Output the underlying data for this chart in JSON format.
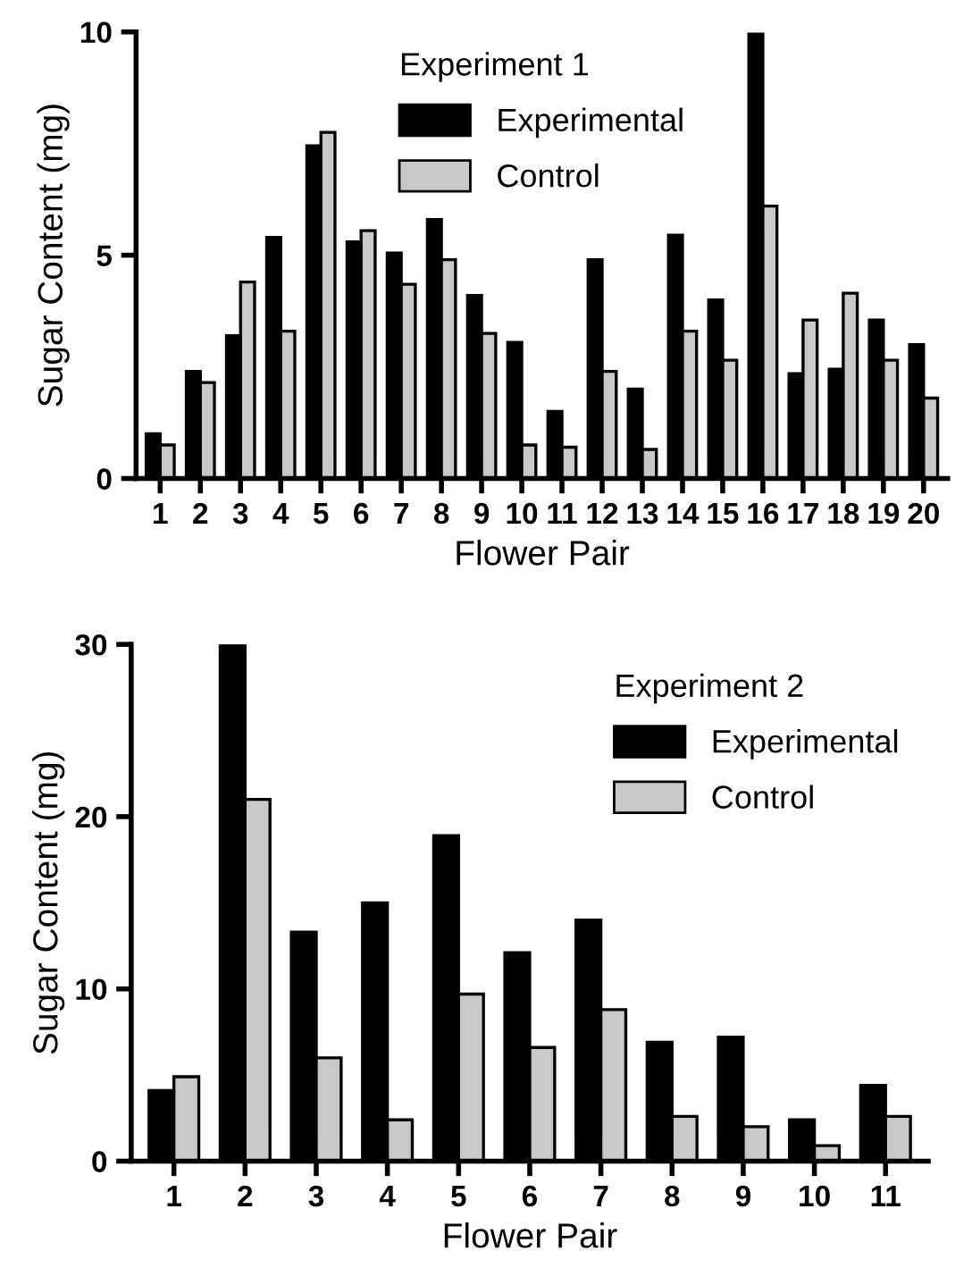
{
  "chart_data": [
    {
      "type": "bar",
      "legend_title": "Experiment 1",
      "xlabel": "Flower Pair",
      "ylabel": "Sugar Content (mg)",
      "categories": [
        "1",
        "2",
        "3",
        "4",
        "5",
        "6",
        "7",
        "8",
        "9",
        "10",
        "11",
        "12",
        "13",
        "14",
        "15",
        "16",
        "17",
        "18",
        "19",
        "20"
      ],
      "series": [
        {
          "name": "Experimental",
          "color": "#000000",
          "values": [
            1.0,
            2.4,
            3.2,
            5.4,
            7.45,
            5.3,
            5.05,
            5.8,
            4.1,
            3.05,
            1.5,
            4.9,
            2.0,
            5.45,
            4.0,
            9.95,
            2.35,
            2.45,
            3.55,
            3.0
          ]
        },
        {
          "name": "Control",
          "color": "#c8c8c8",
          "values": [
            0.75,
            2.15,
            4.4,
            3.3,
            7.75,
            5.55,
            4.35,
            4.9,
            3.25,
            0.75,
            0.7,
            2.4,
            0.65,
            3.3,
            2.65,
            6.1,
            3.55,
            4.15,
            2.65,
            1.8
          ]
        }
      ],
      "ylim": [
        0,
        10
      ],
      "yticks": [
        0,
        5,
        10
      ],
      "grid": false,
      "legend": "top"
    },
    {
      "type": "bar",
      "legend_title": "Experiment 2",
      "xlabel": "Flower Pair",
      "ylabel": "Sugar Content (mg)",
      "categories": [
        "1",
        "2",
        "3",
        "4",
        "5",
        "6",
        "7",
        "8",
        "9",
        "10",
        "11"
      ],
      "series": [
        {
          "name": "Experimental",
          "color": "#000000",
          "values": [
            4.1,
            30,
            13.3,
            15.0,
            18.9,
            12.1,
            14.0,
            6.9,
            7.2,
            2.4,
            4.4
          ]
        },
        {
          "name": "Control",
          "color": "#c8c8c8",
          "values": [
            4.9,
            21.0,
            6.0,
            2.4,
            9.7,
            6.6,
            8.8,
            2.6,
            2.0,
            0.9,
            2.6
          ]
        }
      ],
      "ylim": [
        0,
        30
      ],
      "yticks": [
        0,
        10,
        20,
        30
      ],
      "grid": false,
      "legend": "top right"
    }
  ]
}
